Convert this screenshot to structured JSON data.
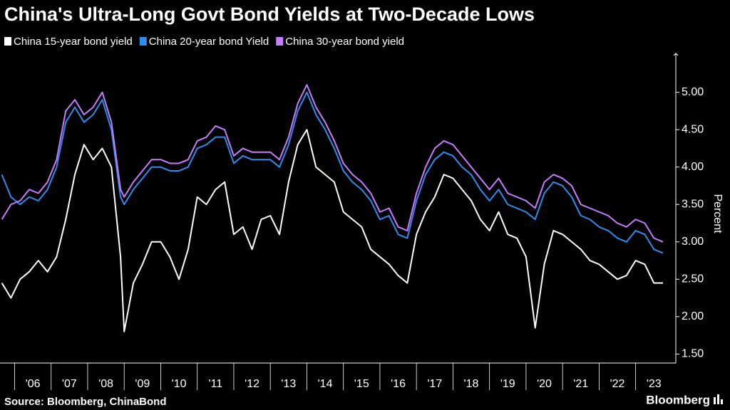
{
  "chart_data": {
    "type": "line",
    "title": "China's Ultra-Long Govt Bond Yields at Two-Decade Lows",
    "y_label": "Percent",
    "source": "Source: Bloomberg, ChinaBond",
    "logo_text": "Bloomberg",
    "x": [
      2005.65,
      2005.9,
      2006.15,
      2006.4,
      2006.65,
      2006.9,
      2007.15,
      2007.4,
      2007.65,
      2007.9,
      2008.15,
      2008.4,
      2008.65,
      2008.9,
      2009.0,
      2009.25,
      2009.5,
      2009.75,
      2010.0,
      2010.25,
      2010.5,
      2010.75,
      2011.0,
      2011.25,
      2011.5,
      2011.75,
      2012.0,
      2012.25,
      2012.5,
      2012.75,
      2013.0,
      2013.25,
      2013.5,
      2013.75,
      2014.0,
      2014.25,
      2014.5,
      2014.75,
      2015.0,
      2015.25,
      2015.5,
      2015.75,
      2016.0,
      2016.25,
      2016.5,
      2016.75,
      2017.0,
      2017.25,
      2017.5,
      2017.75,
      2018.0,
      2018.25,
      2018.5,
      2018.75,
      2019.0,
      2019.25,
      2019.5,
      2019.75,
      2020.0,
      2020.25,
      2020.5,
      2020.75,
      2021.0,
      2021.25,
      2021.5,
      2021.75,
      2022.0,
      2022.25,
      2022.5,
      2022.75,
      2023.0,
      2023.25,
      2023.5,
      2023.75
    ],
    "series": [
      {
        "name": "China 15-year bond yield",
        "color": "#ffffff",
        "values": [
          2.45,
          2.25,
          2.5,
          2.6,
          2.75,
          2.6,
          2.8,
          3.3,
          3.9,
          4.3,
          4.1,
          4.25,
          4.0,
          2.8,
          1.8,
          2.45,
          2.7,
          3.0,
          3.0,
          2.8,
          2.5,
          2.9,
          3.6,
          3.5,
          3.7,
          3.8,
          3.1,
          3.2,
          2.9,
          3.3,
          3.35,
          3.1,
          3.8,
          4.3,
          4.5,
          4.0,
          3.9,
          3.8,
          3.4,
          3.3,
          3.2,
          2.9,
          2.8,
          2.7,
          2.55,
          2.45,
          3.1,
          3.4,
          3.6,
          3.9,
          3.85,
          3.7,
          3.55,
          3.3,
          3.15,
          3.4,
          3.1,
          3.05,
          2.8,
          1.85,
          2.7,
          3.15,
          3.1,
          3.0,
          2.9,
          2.75,
          2.7,
          2.6,
          2.5,
          2.55,
          2.75,
          2.7,
          2.45,
          2.45
        ]
      },
      {
        "name": "China 20-year bond Yield",
        "color": "#2f8cf0",
        "values": [
          3.9,
          3.6,
          3.5,
          3.6,
          3.55,
          3.7,
          4.0,
          4.6,
          4.8,
          4.6,
          4.7,
          4.9,
          4.5,
          3.6,
          3.5,
          3.7,
          3.85,
          4.0,
          4.0,
          3.95,
          3.95,
          4.0,
          4.25,
          4.3,
          4.4,
          4.4,
          4.05,
          4.15,
          4.1,
          4.1,
          4.1,
          4.0,
          4.3,
          4.75,
          5.0,
          4.7,
          4.5,
          4.25,
          3.95,
          3.8,
          3.7,
          3.55,
          3.3,
          3.35,
          3.1,
          3.05,
          3.55,
          3.9,
          4.1,
          4.2,
          4.15,
          4.0,
          3.9,
          3.7,
          3.55,
          3.7,
          3.5,
          3.45,
          3.4,
          3.3,
          3.65,
          3.8,
          3.75,
          3.6,
          3.35,
          3.3,
          3.2,
          3.15,
          3.05,
          3.0,
          3.15,
          3.1,
          2.9,
          2.85
        ]
      },
      {
        "name": "China 30-year bond yield",
        "color": "#c77dff",
        "values": [
          3.3,
          3.5,
          3.55,
          3.7,
          3.65,
          3.8,
          4.1,
          4.75,
          4.9,
          4.7,
          4.8,
          5.0,
          4.6,
          3.7,
          3.6,
          3.8,
          3.95,
          4.1,
          4.1,
          4.05,
          4.05,
          4.1,
          4.35,
          4.4,
          4.55,
          4.5,
          4.15,
          4.25,
          4.2,
          4.2,
          4.2,
          4.1,
          4.4,
          4.85,
          5.1,
          4.8,
          4.6,
          4.35,
          4.05,
          3.9,
          3.8,
          3.65,
          3.4,
          3.45,
          3.2,
          3.15,
          3.65,
          4.0,
          4.25,
          4.35,
          4.3,
          4.15,
          4.0,
          3.85,
          3.7,
          3.85,
          3.65,
          3.6,
          3.55,
          3.45,
          3.8,
          3.9,
          3.85,
          3.75,
          3.5,
          3.45,
          3.4,
          3.35,
          3.25,
          3.2,
          3.3,
          3.25,
          3.05,
          3.0
        ]
      }
    ],
    "xlim": [
      2005.6,
      2024.1
    ],
    "xticks": [
      {
        "value": 2006,
        "label": "'06"
      },
      {
        "value": 2007,
        "label": "'07"
      },
      {
        "value": 2008,
        "label": "'08"
      },
      {
        "value": 2009,
        "label": "'09"
      },
      {
        "value": 2010,
        "label": "'10"
      },
      {
        "value": 2011,
        "label": "'11"
      },
      {
        "value": 2012,
        "label": "'12"
      },
      {
        "value": 2013,
        "label": "'13"
      },
      {
        "value": 2014,
        "label": "'14"
      },
      {
        "value": 2015,
        "label": "'15"
      },
      {
        "value": 2016,
        "label": "'16"
      },
      {
        "value": 2017,
        "label": "'17"
      },
      {
        "value": 2018,
        "label": "'18"
      },
      {
        "value": 2019,
        "label": "'19"
      },
      {
        "value": 2020,
        "label": "'20"
      },
      {
        "value": 2021,
        "label": "'21"
      },
      {
        "value": 2022,
        "label": "'22"
      },
      {
        "value": 2023,
        "label": "'23"
      }
    ],
    "ylim": [
      1.38,
      5.52
    ],
    "yticks": [
      {
        "value": 1.5,
        "label": "1.50"
      },
      {
        "value": 2.0,
        "label": "2.00"
      },
      {
        "value": 2.5,
        "label": "2.50"
      },
      {
        "value": 3.0,
        "label": "3.00"
      },
      {
        "value": 3.5,
        "label": "3.50"
      },
      {
        "value": 4.0,
        "label": "4.00"
      },
      {
        "value": 4.5,
        "label": "4.50"
      },
      {
        "value": 5.0,
        "label": "5.00"
      }
    ]
  }
}
